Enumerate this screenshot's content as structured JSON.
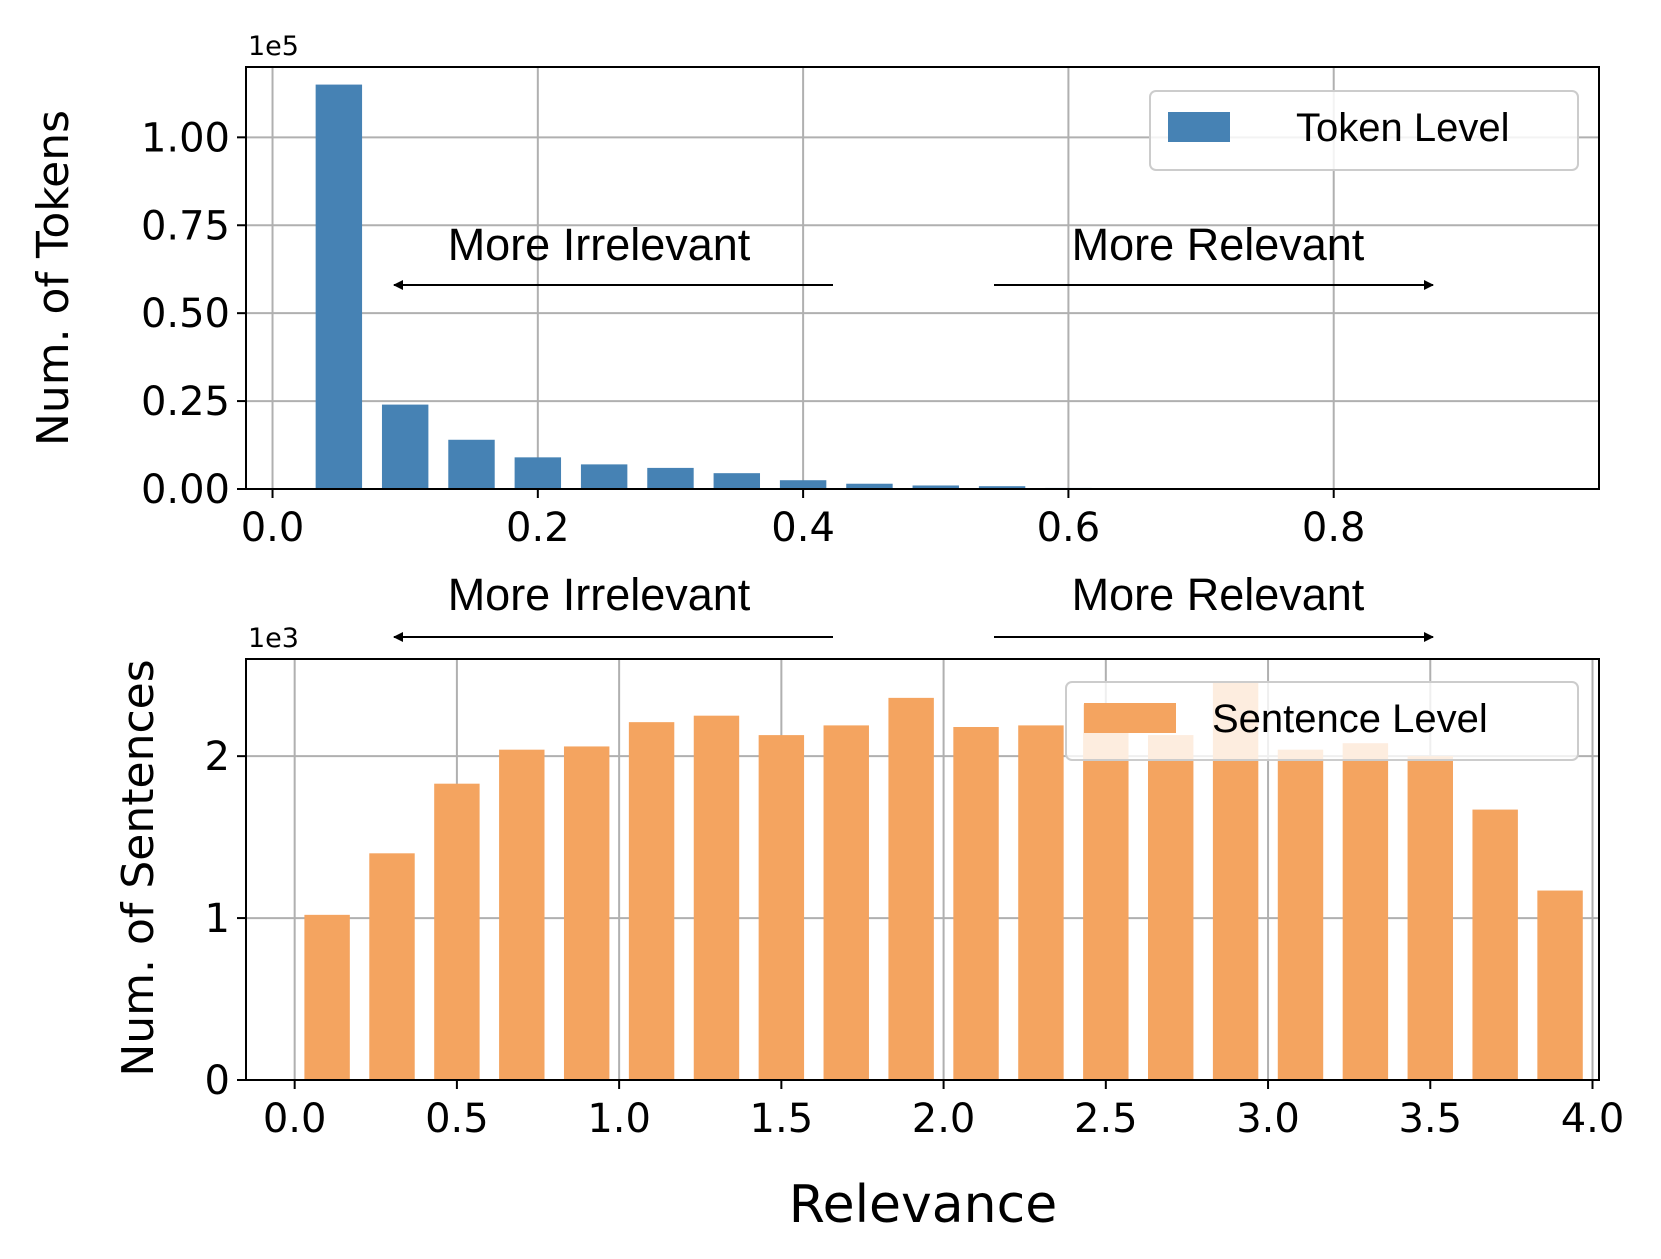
{
  "chart_data": [
    {
      "type": "bar",
      "series_name": "Token Level",
      "color": "#4682b4",
      "x": [
        0.05,
        0.1,
        0.15,
        0.2,
        0.25,
        0.3,
        0.35,
        0.4,
        0.45,
        0.5,
        0.55,
        0.6
      ],
      "values": [
        115000,
        24000,
        14000,
        9000,
        7000,
        6000,
        4500,
        2500,
        1500,
        1000,
        800,
        300
      ],
      "xlim": [
        -0.02,
        1.0
      ],
      "ylim": [
        0,
        120000
      ],
      "xticks": [
        "0.0",
        "0.2",
        "0.4",
        "0.6",
        "0.8"
      ],
      "xtick_values": [
        0.0,
        0.2,
        0.4,
        0.6,
        0.8
      ],
      "yticks": [
        "0.00",
        "0.25",
        "0.50",
        "0.75",
        "1.00"
      ],
      "ytick_values": [
        0,
        25000,
        50000,
        75000,
        100000
      ],
      "offset_text": "1e5",
      "ylabel": "Num. of Tokens",
      "xlabel": "",
      "legend": "Token Level",
      "legend_position": "top-right",
      "grid": true,
      "annotations": [
        "More Irrelevant",
        "More Relevant"
      ]
    },
    {
      "type": "bar",
      "series_name": "Sentence Level",
      "color": "#f4a460",
      "x": [
        0.1,
        0.3,
        0.5,
        0.7,
        0.9,
        1.1,
        1.3,
        1.5,
        1.7,
        1.9,
        2.1,
        2.3,
        2.5,
        2.7,
        2.9,
        3.1,
        3.3,
        3.5,
        3.7,
        3.9
      ],
      "values": [
        1020,
        1400,
        1830,
        2040,
        2060,
        2210,
        2250,
        2130,
        2190,
        2360,
        2180,
        2190,
        2320,
        2130,
        2460,
        2040,
        2080,
        2000,
        1670,
        1170
      ],
      "xlim": [
        -0.15,
        4.02
      ],
      "ylim": [
        0,
        2600
      ],
      "xticks": [
        "0.0",
        "0.5",
        "1.0",
        "1.5",
        "2.0",
        "2.5",
        "3.0",
        "3.5",
        "4.0"
      ],
      "xtick_values": [
        0.0,
        0.5,
        1.0,
        1.5,
        2.0,
        2.5,
        3.0,
        3.5,
        4.0
      ],
      "yticks": [
        "0",
        "1",
        "2"
      ],
      "ytick_values": [
        0,
        1000,
        2000
      ],
      "offset_text": "1e3",
      "ylabel": "Num. of Sentences",
      "xlabel": "Relevance",
      "legend": "Sentence Level",
      "legend_position": "top-right",
      "grid": true,
      "annotations": [
        "More Irrelevant",
        "More Relevant"
      ]
    }
  ]
}
